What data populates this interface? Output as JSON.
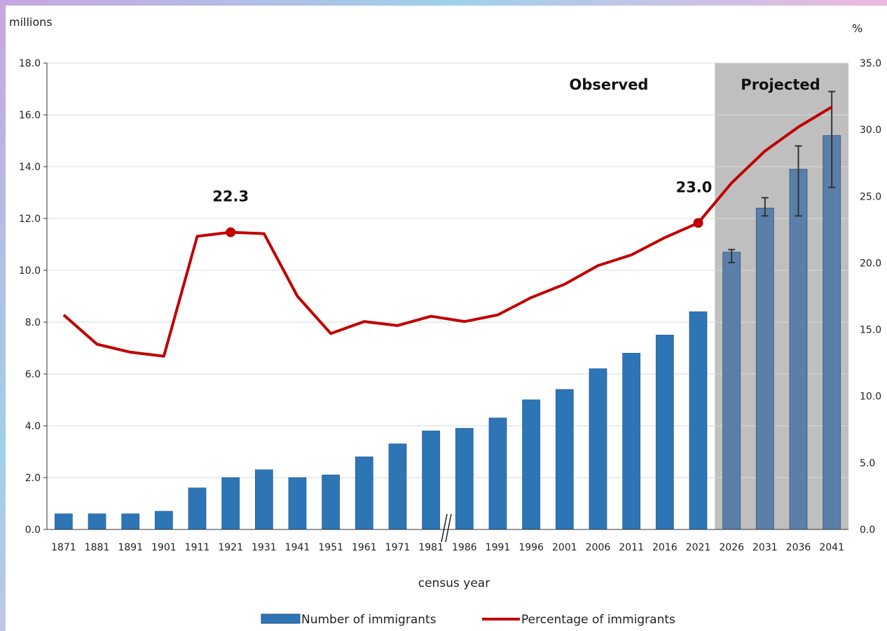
{
  "chart_data": {
    "type": "bar",
    "categories": [
      "1871",
      "1881",
      "1891",
      "1901",
      "1911",
      "1921",
      "1931",
      "1941",
      "1951",
      "1961",
      "1971",
      "1981",
      "1986",
      "1991",
      "1996",
      "2001",
      "2006",
      "2011",
      "2016",
      "2021",
      "2026",
      "2031",
      "2036",
      "2041"
    ],
    "series": [
      {
        "name": "Number of immigrants",
        "type": "bar",
        "axis": "left",
        "color": "#2e75b6",
        "projected_color": "#5a7fa8",
        "values": [
          0.6,
          0.6,
          0.6,
          0.7,
          1.6,
          2.0,
          2.3,
          2.0,
          2.1,
          2.8,
          3.3,
          3.8,
          3.9,
          4.3,
          5.0,
          5.4,
          6.2,
          6.8,
          7.5,
          8.4,
          10.7,
          12.4,
          13.9,
          15.2
        ],
        "error_low": [
          null,
          null,
          null,
          null,
          null,
          null,
          null,
          null,
          null,
          null,
          null,
          null,
          null,
          null,
          null,
          null,
          null,
          null,
          null,
          null,
          10.3,
          12.1,
          12.1,
          13.2
        ],
        "error_high": [
          null,
          null,
          null,
          null,
          null,
          null,
          null,
          null,
          null,
          null,
          null,
          null,
          null,
          null,
          null,
          null,
          null,
          null,
          null,
          null,
          10.8,
          12.8,
          14.8,
          16.9
        ]
      },
      {
        "name": "Percentage of immigrants",
        "type": "line",
        "axis": "right",
        "color": "#c00000",
        "values": [
          16.1,
          13.9,
          13.3,
          13.0,
          22.0,
          22.3,
          22.2,
          17.5,
          14.7,
          15.6,
          15.3,
          16.0,
          15.6,
          16.1,
          17.4,
          18.4,
          19.8,
          20.6,
          21.9,
          23.0,
          26.0,
          28.4,
          30.2,
          31.7
        ]
      }
    ],
    "y_left": {
      "label": "millions",
      "min": 0,
      "max": 18,
      "ticks": [
        "0.0",
        "2.0",
        "4.0",
        "6.0",
        "8.0",
        "10.0",
        "12.0",
        "14.0",
        "16.0",
        "18.0"
      ]
    },
    "y_right": {
      "label": "%",
      "min": 0,
      "max": 35,
      "ticks": [
        "0.0",
        "5.0",
        "10.0",
        "15.0",
        "20.0",
        "25.0",
        "30.0",
        "35.0"
      ]
    },
    "xlabel": "census year",
    "regions": [
      {
        "label": "Observed",
        "from": "1871",
        "to": "2021",
        "shaded": false
      },
      {
        "label": "Projected",
        "from": "2026",
        "to": "2041",
        "shaded": true,
        "color": "#bfbfbf"
      }
    ],
    "annotations": [
      {
        "category": "1921",
        "label": "22.3"
      },
      {
        "category": "2021",
        "label": "23.0"
      }
    ],
    "axis_break_between": [
      "1981",
      "1986"
    ],
    "grid": true,
    "legend_position": "bottom"
  }
}
